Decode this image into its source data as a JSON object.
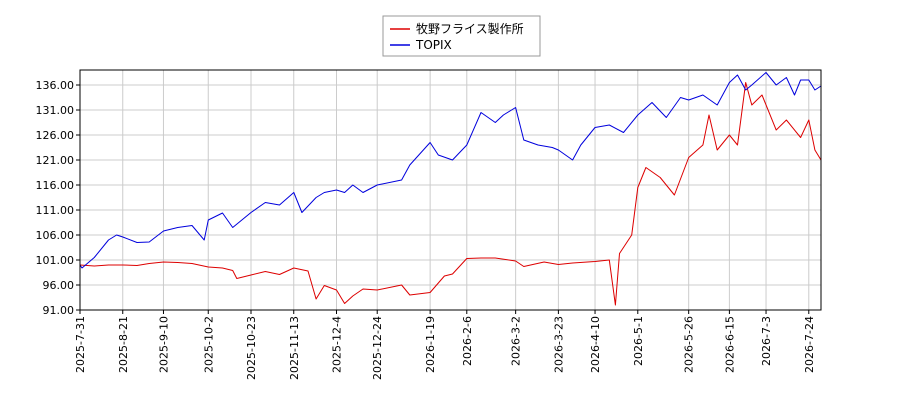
{
  "chart_data": {
    "type": "line",
    "title": "",
    "xlabel": "",
    "ylabel": "",
    "ylim": [
      91.0,
      139.0
    ],
    "y_ticks": [
      "91.00",
      "96.00",
      "101.00",
      "106.00",
      "111.00",
      "116.00",
      "121.00",
      "126.00",
      "131.00",
      "136.00"
    ],
    "x_ticks": [
      "2025-7-31",
      "2025-8-21",
      "2025-9-10",
      "2025-10-2",
      "2025-10-23",
      "2025-11-13",
      "2025-12-4",
      "2025-12-24",
      "2026-1-19",
      "2026-2-6",
      "2026-3-2",
      "2026-3-23",
      "2026-4-10",
      "2026-5-1",
      "2026-5-26",
      "2026-6-15",
      "2026-7-3",
      "2026-7-24"
    ],
    "grid": true,
    "legend": "top-center",
    "series": [
      {
        "name": "牧野フライス製作所",
        "color": "#dd0000",
        "points": [
          [
            "2025-7-31",
            100.0
          ],
          [
            "2025-8-7",
            99.8
          ],
          [
            "2025-8-14",
            100.0
          ],
          [
            "2025-8-21",
            100.0
          ],
          [
            "2025-8-28",
            99.9
          ],
          [
            "2025-9-3",
            100.3
          ],
          [
            "2025-9-10",
            100.6
          ],
          [
            "2025-9-17",
            100.5
          ],
          [
            "2025-9-24",
            100.3
          ],
          [
            "2025-10-2",
            99.6
          ],
          [
            "2025-10-9",
            99.4
          ],
          [
            "2025-10-14",
            98.9
          ],
          [
            "2025-10-16",
            97.3
          ],
          [
            "2025-10-23",
            98.0
          ],
          [
            "2025-10-30",
            98.7
          ],
          [
            "2025-11-6",
            98.1
          ],
          [
            "2025-11-13",
            99.4
          ],
          [
            "2025-11-20",
            98.8
          ],
          [
            "2025-11-24",
            93.2
          ],
          [
            "2025-11-28",
            95.9
          ],
          [
            "2025-12-4",
            95.0
          ],
          [
            "2025-12-8",
            92.3
          ],
          [
            "2025-12-12",
            93.8
          ],
          [
            "2025-12-17",
            95.2
          ],
          [
            "2025-12-24",
            95.0
          ],
          [
            "2026-1-5",
            96.0
          ],
          [
            "2026-1-9",
            94.0
          ],
          [
            "2026-1-19",
            94.5
          ],
          [
            "2026-1-26",
            97.8
          ],
          [
            "2026-1-30",
            98.2
          ],
          [
            "2026-2-6",
            101.3
          ],
          [
            "2026-2-13",
            101.4
          ],
          [
            "2026-2-20",
            101.4
          ],
          [
            "2026-3-2",
            100.8
          ],
          [
            "2026-3-6",
            99.7
          ],
          [
            "2026-3-16",
            100.6
          ],
          [
            "2026-3-23",
            100.1
          ],
          [
            "2026-3-30",
            100.4
          ],
          [
            "2026-4-10",
            100.7
          ],
          [
            "2026-4-17",
            101.0
          ],
          [
            "2026-4-20",
            92.0
          ],
          [
            "2026-4-22",
            102.3
          ],
          [
            "2026-4-28",
            106.0
          ],
          [
            "2026-5-1",
            115.5
          ],
          [
            "2026-5-5",
            119.5
          ],
          [
            "2026-5-12",
            117.5
          ],
          [
            "2026-5-19",
            114.0
          ],
          [
            "2026-5-26",
            121.5
          ],
          [
            "2026-6-2",
            124.0
          ],
          [
            "2026-6-5",
            130.0
          ],
          [
            "2026-6-9",
            123.0
          ],
          [
            "2026-6-15",
            126.0
          ],
          [
            "2026-6-19",
            124.0
          ],
          [
            "2026-6-23",
            136.5
          ],
          [
            "2026-6-26",
            132.0
          ],
          [
            "2026-7-1",
            134.0
          ],
          [
            "2026-7-8",
            127.0
          ],
          [
            "2026-7-13",
            129.0
          ],
          [
            "2026-7-20",
            125.5
          ],
          [
            "2026-7-24",
            129.0
          ],
          [
            "2026-7-27",
            123.0
          ],
          [
            "2026-7-30",
            121.0
          ]
        ]
      },
      {
        "name": "TOPIX",
        "color": "#0000dd",
        "points": [
          [
            "2025-7-31",
            100.0
          ],
          [
            "2025-8-1",
            99.4
          ],
          [
            "2025-8-7",
            101.5
          ],
          [
            "2025-8-14",
            105.0
          ],
          [
            "2025-8-18",
            106.0
          ],
          [
            "2025-8-21",
            105.6
          ],
          [
            "2025-8-28",
            104.5
          ],
          [
            "2025-9-3",
            104.6
          ],
          [
            "2025-9-10",
            106.8
          ],
          [
            "2025-9-17",
            107.5
          ],
          [
            "2025-9-24",
            107.9
          ],
          [
            "2025-9-30",
            105.0
          ],
          [
            "2025-10-2",
            109.0
          ],
          [
            "2025-10-9",
            110.4
          ],
          [
            "2025-10-14",
            107.5
          ],
          [
            "2025-10-23",
            110.5
          ],
          [
            "2025-10-30",
            112.5
          ],
          [
            "2025-11-6",
            112.0
          ],
          [
            "2025-11-13",
            114.5
          ],
          [
            "2025-11-17",
            110.5
          ],
          [
            "2025-11-24",
            113.5
          ],
          [
            "2025-11-28",
            114.5
          ],
          [
            "2025-12-4",
            115.0
          ],
          [
            "2025-12-8",
            114.5
          ],
          [
            "2025-12-12",
            116.0
          ],
          [
            "2025-12-17",
            114.5
          ],
          [
            "2025-12-24",
            116.0
          ],
          [
            "2026-1-5",
            117.0
          ],
          [
            "2026-1-9",
            120.0
          ],
          [
            "2026-1-19",
            124.5
          ],
          [
            "2026-1-23",
            122.0
          ],
          [
            "2026-1-30",
            121.0
          ],
          [
            "2026-2-6",
            124.0
          ],
          [
            "2026-2-13",
            130.5
          ],
          [
            "2026-2-20",
            128.5
          ],
          [
            "2026-2-24",
            130.0
          ],
          [
            "2026-3-2",
            131.5
          ],
          [
            "2026-3-6",
            125.0
          ],
          [
            "2026-3-13",
            124.0
          ],
          [
            "2026-3-20",
            123.5
          ],
          [
            "2026-3-23",
            123.0
          ],
          [
            "2026-3-30",
            121.0
          ],
          [
            "2026-4-3",
            124.0
          ],
          [
            "2026-4-10",
            127.5
          ],
          [
            "2026-4-17",
            128.0
          ],
          [
            "2026-4-24",
            126.5
          ],
          [
            "2026-5-1",
            130.0
          ],
          [
            "2026-5-8",
            132.5
          ],
          [
            "2026-5-15",
            129.5
          ],
          [
            "2026-5-22",
            133.5
          ],
          [
            "2026-5-26",
            133.0
          ],
          [
            "2026-6-2",
            134.0
          ],
          [
            "2026-6-9",
            132.0
          ],
          [
            "2026-6-15",
            136.5
          ],
          [
            "2026-6-19",
            138.0
          ],
          [
            "2026-6-23",
            135.0
          ],
          [
            "2026-6-26",
            136.0
          ],
          [
            "2026-7-3",
            138.5
          ],
          [
            "2026-7-8",
            136.0
          ],
          [
            "2026-7-13",
            137.5
          ],
          [
            "2026-7-17",
            134.0
          ],
          [
            "2026-7-20",
            137.0
          ],
          [
            "2026-7-24",
            137.0
          ],
          [
            "2026-7-27",
            135.0
          ],
          [
            "2026-7-30",
            135.8
          ]
        ]
      }
    ]
  }
}
